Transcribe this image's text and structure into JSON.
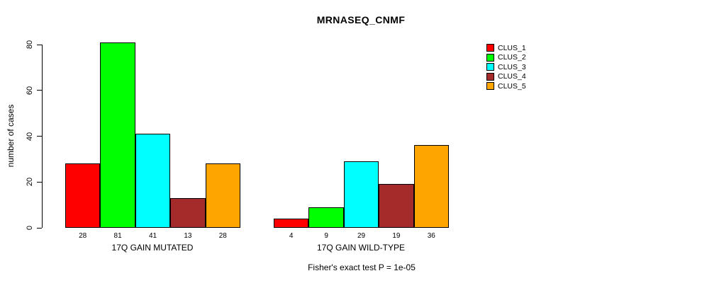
{
  "chart_data": {
    "type": "bar",
    "title": "MRNASEQ_CNMF",
    "ylabel": "number of cases",
    "xlabel": "",
    "ylim": [
      0,
      80
    ],
    "yticks": [
      0,
      20,
      40,
      60,
      80
    ],
    "grid": false,
    "legend_position": "right",
    "bar_value_labels": true,
    "categories": [
      "17Q GAIN MUTATED",
      "17Q GAIN WILD-TYPE"
    ],
    "series": [
      {
        "name": "CLUS_1",
        "color": "#FF0000",
        "values": [
          28,
          4
        ]
      },
      {
        "name": "CLUS_2",
        "color": "#00FF00",
        "values": [
          81,
          9
        ]
      },
      {
        "name": "CLUS_3",
        "color": "#00FFFF",
        "values": [
          41,
          29
        ]
      },
      {
        "name": "CLUS_4",
        "color": "#A52A2A",
        "values": [
          13,
          19
        ]
      },
      {
        "name": "CLUS_5",
        "color": "#FFA500",
        "values": [
          28,
          36
        ]
      }
    ],
    "footnote": "Fisher's exact test P = 1e-05",
    "text_color": "#000000",
    "background_color": "#FFFFFF"
  }
}
